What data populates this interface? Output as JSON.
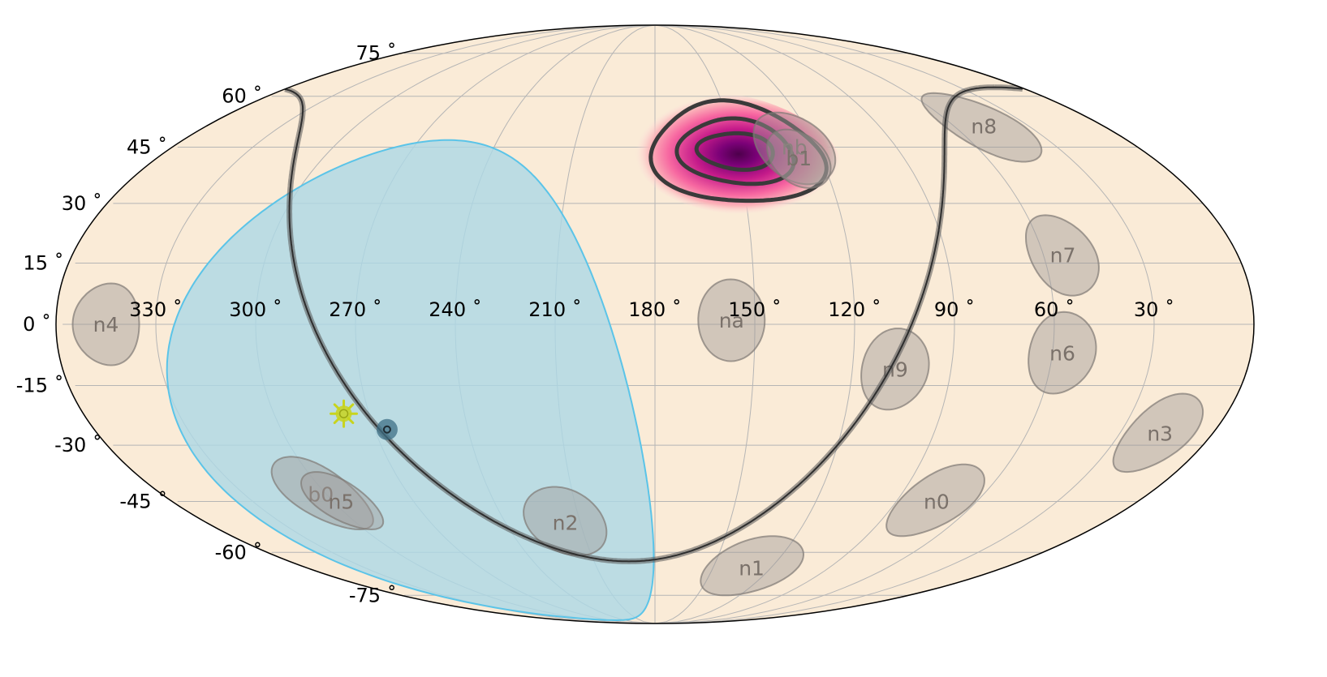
{
  "chart_data": {
    "type": "sky-map",
    "projection": "mollweide",
    "ra_direction": "decreasing-left-to-right",
    "grid": true,
    "colors": {
      "background": "#faebd7",
      "outline": "#000000",
      "grid": "#b5b5b5",
      "detector_fill": "#a09a96",
      "detector_edge": "#7f7975",
      "earth_fill": "#add8e6",
      "earth_edge": "#5bc4e8",
      "contour": "#3a3a3a",
      "galactic_plane": "#555555",
      "sun": "#c8d41e",
      "point": "#3d6f85",
      "localization_high": "#4d004b",
      "localization_mid": "#c51b8a",
      "localization_low": "#fde0dd"
    },
    "ra_ticks": [
      {
        "value": 330,
        "label": "330$^\\circ$",
        "text": "330 ˚"
      },
      {
        "value": 300,
        "text": "300 ˚"
      },
      {
        "value": 270,
        "text": "270 ˚"
      },
      {
        "value": 240,
        "text": "240 ˚"
      },
      {
        "value": 210,
        "text": "210 ˚"
      },
      {
        "value": 180,
        "text": "180 ˚"
      },
      {
        "value": 150,
        "text": "150 ˚"
      },
      {
        "value": 120,
        "text": "120 ˚"
      },
      {
        "value": 90,
        "text": "90 ˚"
      },
      {
        "value": 60,
        "text": "60 ˚"
      },
      {
        "value": 30,
        "text": "30 ˚"
      }
    ],
    "dec_ticks": [
      {
        "value": 75,
        "text": "75 ˚"
      },
      {
        "value": 60,
        "text": "60 ˚"
      },
      {
        "value": 45,
        "text": "45 ˚"
      },
      {
        "value": 30,
        "text": "30 ˚"
      },
      {
        "value": 15,
        "text": "15 ˚"
      },
      {
        "value": 0,
        "text": "0 ˚"
      },
      {
        "value": -15,
        "text": "-15 ˚"
      },
      {
        "value": -30,
        "text": "-30 ˚"
      },
      {
        "value": -45,
        "text": "-45 ˚"
      },
      {
        "value": -60,
        "text": "-60 ˚"
      },
      {
        "value": -75,
        "text": "-75 ˚"
      }
    ],
    "detectors": [
      {
        "name": "n4",
        "ra": 345,
        "dec": 0,
        "radius": 10
      },
      {
        "name": "na",
        "ra": 157,
        "dec": 1,
        "radius": 10
      },
      {
        "name": "nb",
        "ra": 128,
        "dec": 45,
        "radius": 10
      },
      {
        "name": "b1",
        "ra": 128,
        "dec": 42,
        "radius": 8
      },
      {
        "name": "n8",
        "ra": 48,
        "dec": 51,
        "radius": 10
      },
      {
        "name": "n7",
        "ra": 54,
        "dec": 17,
        "radius": 10
      },
      {
        "name": "n9",
        "ra": 107,
        "dec": -11,
        "radius": 10
      },
      {
        "name": "n6",
        "ra": 57,
        "dec": -7,
        "radius": 10
      },
      {
        "name": "n3",
        "ra": 17,
        "dec": -27,
        "radius": 10
      },
      {
        "name": "n0",
        "ra": 75,
        "dec": -45,
        "radius": 10
      },
      {
        "name": "n1",
        "ra": 130,
        "dec": -65,
        "radius": 10
      },
      {
        "name": "n2",
        "ra": 216,
        "dec": -51,
        "radius": 10
      },
      {
        "name": "b0",
        "ra": 302,
        "dec": -43,
        "radius": 10
      },
      {
        "name": "n5",
        "ra": 297,
        "dec": -45,
        "radius": 8
      }
    ],
    "earth_occultation": {
      "center_ra": 259,
      "center_dec": -20,
      "radius": 67,
      "clip_ra_min": 180
    },
    "galactic_plane": {
      "pole_ra": 192.86,
      "pole_dec": 27.13
    },
    "localization": {
      "peak_ra": 150,
      "peak_dec": 44,
      "contours": [
        {
          "level": 1,
          "dra": 14,
          "ddec": 5
        },
        {
          "level": 2,
          "dra": 21,
          "ddec": 9
        },
        {
          "level": 3,
          "dra": 31,
          "ddec": 14
        }
      ]
    },
    "sun": {
      "ra": 278,
      "dec": -22
    },
    "point_source": {
      "ra": 266,
      "dec": -26
    }
  }
}
